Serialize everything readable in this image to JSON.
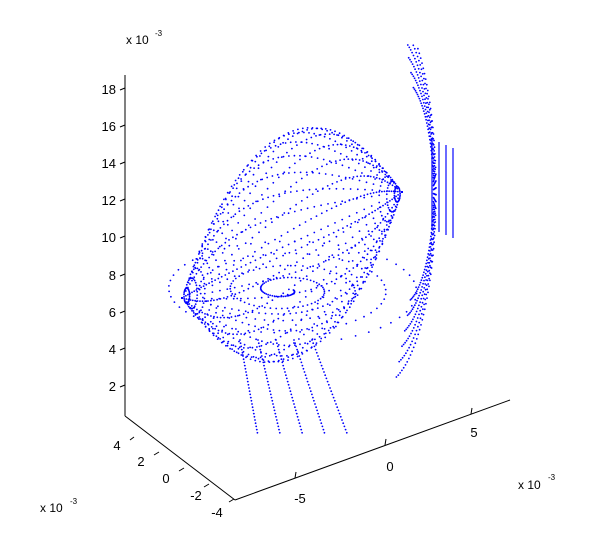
{
  "chart_data": {
    "type": "scatter",
    "projection": "3d",
    "title": "",
    "marker_color": "#0000ff",
    "axis_color": "#000000",
    "grid": false,
    "z_axis": {
      "label": "",
      "ticks": [
        "2",
        "4",
        "6",
        "8",
        "10",
        "12",
        "14",
        "16",
        "18"
      ],
      "multiplier": "x 10",
      "multiplier_exp": "-3"
    },
    "x_axis": {
      "label": "",
      "ticks": [
        "-5",
        "0",
        "5"
      ],
      "multiplier": "x 10",
      "multiplier_exp": "-3"
    },
    "y_axis": {
      "label": "",
      "ticks": [
        "4",
        "2",
        "0",
        "-2",
        "-4"
      ],
      "multiplier": "x 10",
      "multiplier_exp": "-3"
    },
    "point_cloud": {
      "description_shape": "dotted meridian curves on an ellipsoidal surface converging at a pole near the right side",
      "pole": [
        0.004,
        0.002,
        0.0115
      ],
      "meridian_count": 28,
      "points_per_meridian": 46
    }
  }
}
